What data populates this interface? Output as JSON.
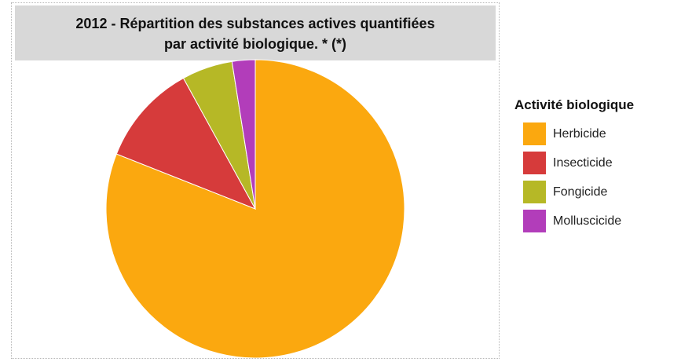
{
  "chart_data": {
    "type": "pie",
    "title_lines": [
      "2012 - Répartition des substances actives quantifiées",
      "par activité biologique.  * (*)"
    ],
    "legend_title": "Activité biologique",
    "legend_position": "right",
    "slices": [
      {
        "label": "Herbicide",
        "value": 81,
        "color": "#fba80f"
      },
      {
        "label": "Insecticide",
        "value": 11,
        "color": "#d63b3b"
      },
      {
        "label": "Fongicide",
        "value": 5.5,
        "color": "#b6b826"
      },
      {
        "label": "Molluscicide",
        "value": 2.5,
        "color": "#b23dba"
      }
    ]
  }
}
